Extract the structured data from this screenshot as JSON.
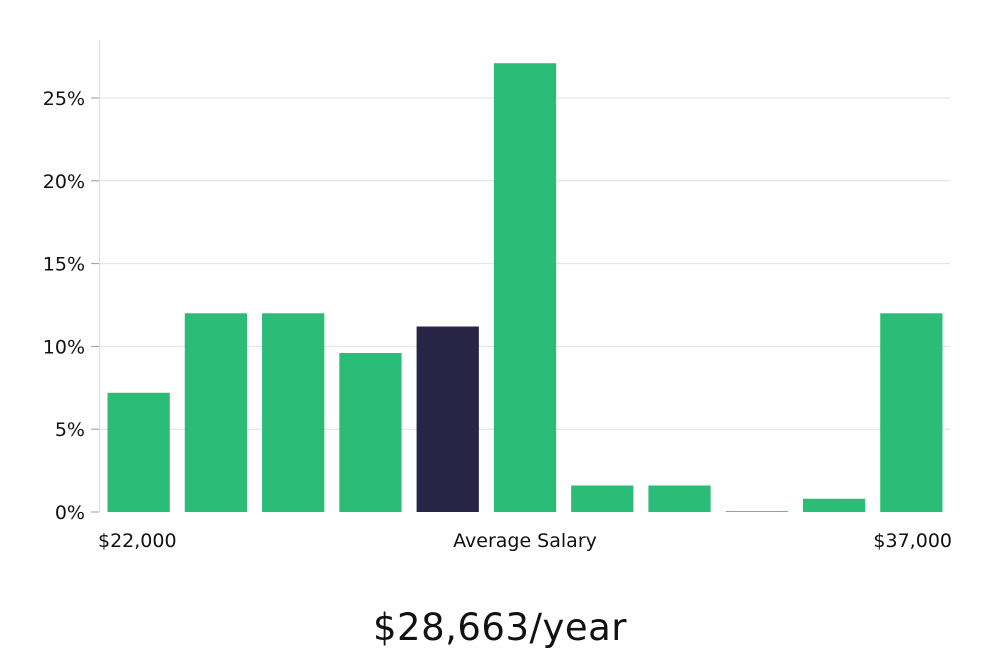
{
  "chart_data": {
    "type": "bar",
    "y_ticks": [
      {
        "value": 0,
        "label": "0%"
      },
      {
        "value": 5,
        "label": "5%"
      },
      {
        "value": 10,
        "label": "10%"
      },
      {
        "value": 15,
        "label": "15%"
      },
      {
        "value": 20,
        "label": "20%"
      },
      {
        "value": 25,
        "label": "25%"
      }
    ],
    "ylim": [
      0,
      28.5
    ],
    "grid": true,
    "values": [
      7.2,
      12.0,
      12.0,
      9.6,
      11.2,
      27.1,
      1.6,
      1.6,
      0.05,
      0.8,
      12.0
    ],
    "highlight_index": 4,
    "x_labels": {
      "left": "$22,000",
      "center": "Average Salary",
      "right": "$37,000"
    },
    "colors": {
      "bar": "#2bbd77",
      "highlight": "#272445",
      "grid": "#e0e0e0",
      "axis": "#dddddd"
    }
  },
  "salary_text": "$28,663/year"
}
